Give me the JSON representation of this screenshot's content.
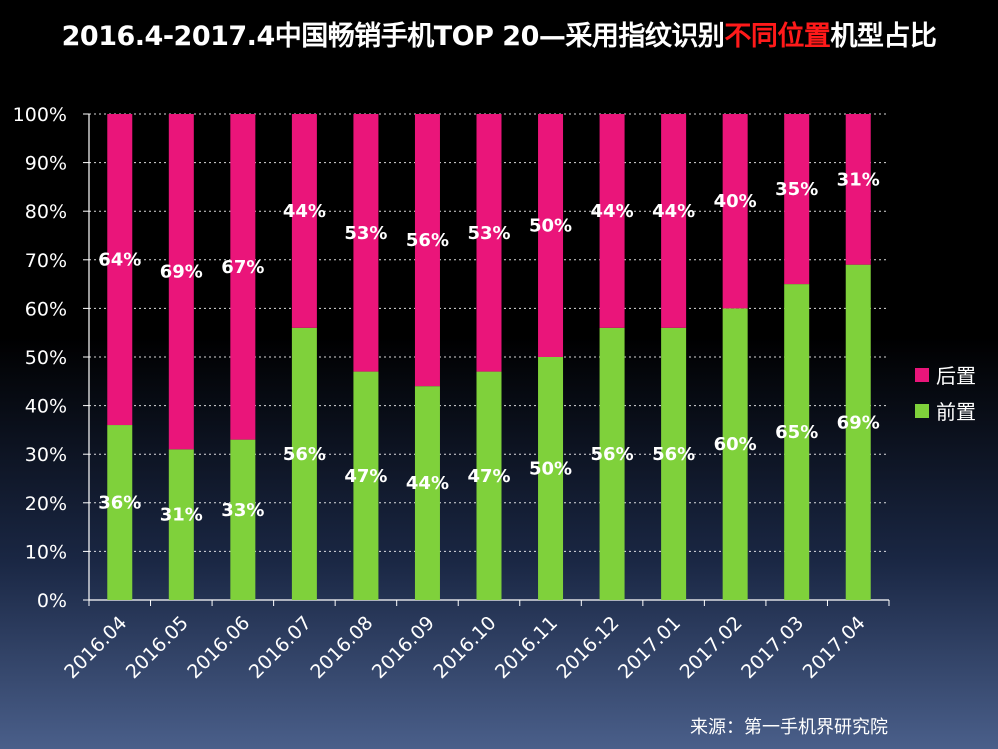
{
  "title": {
    "prefix": "2016.4-2017.4中国畅销手机TOP 20—采用指纹识别",
    "highlight": "不同位置",
    "suffix": "机型占比"
  },
  "source": "来源：第一手机界研究院",
  "colors": {
    "front": "#7fd13b",
    "rear": "#ea157a"
  },
  "chart_data": {
    "type": "bar",
    "stacked": true,
    "percent": true,
    "categories": [
      "2016.04",
      "2016.05",
      "2016.06",
      "2016.07",
      "2016.08",
      "2016.09",
      "2016.10",
      "2016.11",
      "2016.12",
      "2017.01",
      "2017.02",
      "2017.03",
      "2017.04"
    ],
    "series": [
      {
        "name": "前置",
        "values": [
          36,
          31,
          33,
          56,
          47,
          44,
          47,
          50,
          56,
          56,
          60,
          65,
          69
        ],
        "labels": [
          "36%",
          "31%",
          "33%",
          "56%",
          "47%",
          "44%",
          "47%",
          "50%",
          "56%",
          "56%",
          "60%",
          "65%",
          "69%"
        ]
      },
      {
        "name": "后置",
        "values": [
          64,
          69,
          67,
          44,
          53,
          56,
          53,
          50,
          44,
          44,
          40,
          35,
          31
        ],
        "labels": [
          "64%",
          "69%",
          "67%",
          "44%",
          "53%",
          "56%",
          "53%",
          "50%",
          "44%",
          "44%",
          "40%",
          "35%",
          "31%"
        ]
      }
    ],
    "ylim": [
      0,
      100
    ],
    "yticks": [
      "0%",
      "10%",
      "20%",
      "30%",
      "40%",
      "50%",
      "60%",
      "70%",
      "80%",
      "90%",
      "100%"
    ],
    "legend": [
      {
        "name": "后置",
        "color": "#ea157a"
      },
      {
        "name": "前置",
        "color": "#7fd13b"
      }
    ],
    "legend_position": "right"
  }
}
